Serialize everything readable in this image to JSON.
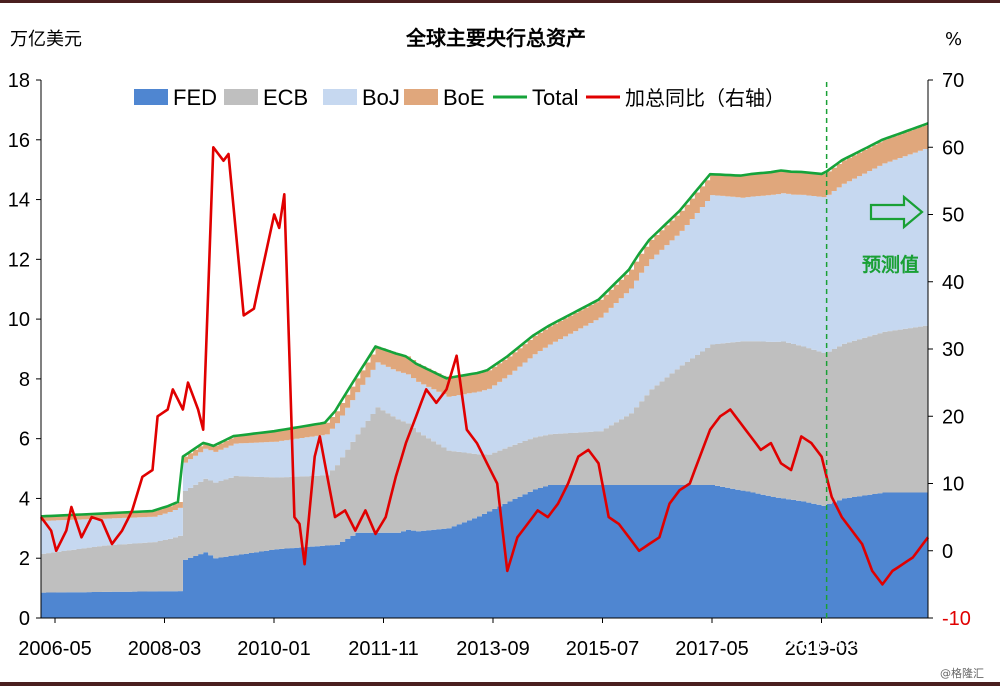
{
  "chart_data": {
    "type": "area",
    "title": "全球主要央行总资产",
    "ylabel_left": "万亿美元",
    "ylabel_right": "%",
    "left_axis": {
      "ylim": [
        0,
        18
      ],
      "ticks": [
        "0",
        "2",
        "4",
        "6",
        "8",
        "10",
        "12",
        "14",
        "16",
        "18"
      ]
    },
    "right_axis": {
      "ylim": [
        -10,
        70
      ],
      "ticks": [
        "-10",
        "0",
        "10",
        "20",
        "30",
        "40",
        "50",
        "60",
        "70"
      ]
    },
    "x_ticks": [
      "2006-05",
      "2008-03",
      "2010-01",
      "2011-11",
      "2013-09",
      "2015-07",
      "2017-05",
      "2019-03"
    ],
    "legend": [
      {
        "name": "FED",
        "color": "#4f86d1",
        "kind": "area"
      },
      {
        "name": "ECB",
        "color": "#bfbfbf",
        "kind": "area"
      },
      {
        "name": "BoJ",
        "color": "#c6d8f0",
        "kind": "area"
      },
      {
        "name": "BoE",
        "color": "#e0a77c",
        "kind": "area"
      },
      {
        "name": "Total",
        "color": "#16a33a",
        "kind": "line"
      },
      {
        "name": "加总同比（右轴）",
        "color": "#e00000",
        "kind": "line"
      }
    ],
    "forecast_label": "预测值",
    "forecast_start_index": 155,
    "x_count": 176,
    "series": [
      {
        "name": "FED",
        "axis": "left",
        "color": "#4f86d1",
        "keyframes": [
          [
            0,
            0.85
          ],
          [
            27,
            0.9
          ],
          [
            28,
            1.95
          ],
          [
            32,
            2.2
          ],
          [
            34,
            2.0
          ],
          [
            42,
            2.2
          ],
          [
            46,
            2.3
          ],
          [
            58,
            2.45
          ],
          [
            62,
            2.85
          ],
          [
            70,
            2.85
          ],
          [
            72,
            2.95
          ],
          [
            74,
            2.9
          ],
          [
            80,
            3.0
          ],
          [
            86,
            3.4
          ],
          [
            92,
            3.9
          ],
          [
            97,
            4.3
          ],
          [
            100,
            4.45
          ],
          [
            112,
            4.45
          ],
          [
            122,
            4.45
          ],
          [
            132,
            4.45
          ],
          [
            140,
            4.2
          ],
          [
            144,
            4.05
          ],
          [
            150,
            3.9
          ],
          [
            154,
            3.75
          ],
          [
            158,
            4.0
          ],
          [
            166,
            4.2
          ],
          [
            175,
            4.2
          ]
        ]
      },
      {
        "name": "ECB",
        "axis": "left",
        "color": "#bfbfbf",
        "keyframes": [
          [
            0,
            1.3
          ],
          [
            12,
            1.55
          ],
          [
            22,
            1.65
          ],
          [
            25,
            1.75
          ],
          [
            27,
            1.85
          ],
          [
            28,
            2.3
          ],
          [
            33,
            2.5
          ],
          [
            38,
            2.65
          ],
          [
            46,
            2.4
          ],
          [
            56,
            2.35
          ],
          [
            62,
            3.3
          ],
          [
            66,
            4.2
          ],
          [
            70,
            3.8
          ],
          [
            80,
            2.6
          ],
          [
            88,
            1.9
          ],
          [
            100,
            1.7
          ],
          [
            110,
            1.8
          ],
          [
            116,
            2.4
          ],
          [
            120,
            3.2
          ],
          [
            126,
            4.0
          ],
          [
            132,
            4.7
          ],
          [
            138,
            5.0
          ],
          [
            146,
            5.25
          ],
          [
            155,
            5.1
          ],
          [
            165,
            5.35
          ],
          [
            175,
            5.6
          ]
        ]
      },
      {
        "name": "BoJ",
        "axis": "left",
        "color": "#c6d8f0",
        "keyframes": [
          [
            0,
            1.1
          ],
          [
            12,
            0.9
          ],
          [
            22,
            0.85
          ],
          [
            28,
            0.95
          ],
          [
            32,
            1.0
          ],
          [
            46,
            1.2
          ],
          [
            58,
            1.4
          ],
          [
            62,
            1.4
          ],
          [
            70,
            1.6
          ],
          [
            80,
            1.8
          ],
          [
            92,
            2.4
          ],
          [
            100,
            3.0
          ],
          [
            110,
            3.8
          ],
          [
            118,
            4.3
          ],
          [
            126,
            4.5
          ],
          [
            132,
            5.0
          ],
          [
            138,
            4.8
          ],
          [
            148,
            5.0
          ],
          [
            155,
            5.25
          ],
          [
            165,
            5.6
          ],
          [
            175,
            5.95
          ]
        ]
      },
      {
        "name": "BoE",
        "axis": "left",
        "color": "#e0a77c",
        "keyframes": [
          [
            0,
            0.15
          ],
          [
            28,
            0.2
          ],
          [
            34,
            0.2
          ],
          [
            46,
            0.35
          ],
          [
            58,
            0.4
          ],
          [
            70,
            0.6
          ],
          [
            80,
            0.62
          ],
          [
            92,
            0.62
          ],
          [
            110,
            0.6
          ],
          [
            120,
            0.65
          ],
          [
            132,
            0.7
          ],
          [
            140,
            0.75
          ],
          [
            155,
            0.78
          ],
          [
            175,
            0.8
          ]
        ]
      },
      {
        "name": "加总同比（右轴）",
        "axis": "right",
        "color": "#e00000",
        "keyframes": [
          [
            0,
            5.0
          ],
          [
            2,
            3.0
          ],
          [
            3,
            0.0
          ],
          [
            5,
            3.0
          ],
          [
            6,
            6.5
          ],
          [
            8,
            2.0
          ],
          [
            10,
            5.0
          ],
          [
            12,
            4.5
          ],
          [
            14,
            1.0
          ],
          [
            16,
            3.0
          ],
          [
            18,
            6.0
          ],
          [
            20,
            11.0
          ],
          [
            22,
            12.0
          ],
          [
            23,
            20.0
          ],
          [
            25,
            21.0
          ],
          [
            26,
            24.0
          ],
          [
            28,
            21.0
          ],
          [
            29,
            25.0
          ],
          [
            31,
            21.0
          ],
          [
            32,
            18.0
          ],
          [
            34,
            60.0
          ],
          [
            36,
            58.0
          ],
          [
            37,
            59.0
          ],
          [
            40,
            35.0
          ],
          [
            42,
            36.0
          ],
          [
            44,
            43.0
          ],
          [
            46,
            50.0
          ],
          [
            47,
            48.0
          ],
          [
            48,
            53.0
          ],
          [
            50,
            5.0
          ],
          [
            51,
            4.0
          ],
          [
            52,
            -2.0
          ],
          [
            54,
            14.0
          ],
          [
            55,
            17.0
          ],
          [
            56,
            13.0
          ],
          [
            58,
            5.0
          ],
          [
            60,
            6.0
          ],
          [
            62,
            3.0
          ],
          [
            64,
            6.0
          ],
          [
            66,
            2.5
          ],
          [
            68,
            5.0
          ],
          [
            70,
            11.0
          ],
          [
            72,
            16.0
          ],
          [
            74,
            20.0
          ],
          [
            76,
            24.0
          ],
          [
            78,
            22.0
          ],
          [
            80,
            24.0
          ],
          [
            82,
            29.0
          ],
          [
            84,
            18.0
          ],
          [
            86,
            16.0
          ],
          [
            88,
            13.0
          ],
          [
            90,
            10.0
          ],
          [
            92,
            -3.0
          ],
          [
            94,
            2.0
          ],
          [
            96,
            4.0
          ],
          [
            98,
            6.0
          ],
          [
            100,
            5.0
          ],
          [
            102,
            7.0
          ],
          [
            104,
            10.0
          ],
          [
            106,
            14.0
          ],
          [
            108,
            15.0
          ],
          [
            110,
            13.0
          ],
          [
            112,
            5.0
          ],
          [
            114,
            4.0
          ],
          [
            116,
            2.0
          ],
          [
            118,
            0.0
          ],
          [
            120,
            1.0
          ],
          [
            122,
            2.0
          ],
          [
            124,
            7.0
          ],
          [
            126,
            9.0
          ],
          [
            128,
            10.0
          ],
          [
            130,
            14.0
          ],
          [
            132,
            18.0
          ],
          [
            134,
            20.0
          ],
          [
            136,
            21.0
          ],
          [
            138,
            19.0
          ],
          [
            140,
            17.0
          ],
          [
            142,
            15.0
          ],
          [
            144,
            16.0
          ],
          [
            146,
            13.0
          ],
          [
            148,
            12.0
          ],
          [
            150,
            17.0
          ],
          [
            152,
            16.0
          ],
          [
            154,
            14.0
          ],
          [
            156,
            8.0
          ],
          [
            158,
            5.0
          ],
          [
            160,
            3.0
          ],
          [
            162,
            1.0
          ],
          [
            164,
            -3.0
          ],
          [
            166,
            -5.0
          ],
          [
            168,
            -3.0
          ],
          [
            170,
            -2.0
          ],
          [
            172,
            -1.0
          ],
          [
            174,
            1.0
          ],
          [
            176,
            3.0
          ],
          [
            178,
            6.0
          ],
          [
            180,
            8.0
          ],
          [
            182,
            9.0
          ],
          [
            184,
            8.5
          ]
        ]
      }
    ]
  },
  "watermark": {
    "brand": "财主家的余粮",
    "sub": "@格隆汇"
  }
}
